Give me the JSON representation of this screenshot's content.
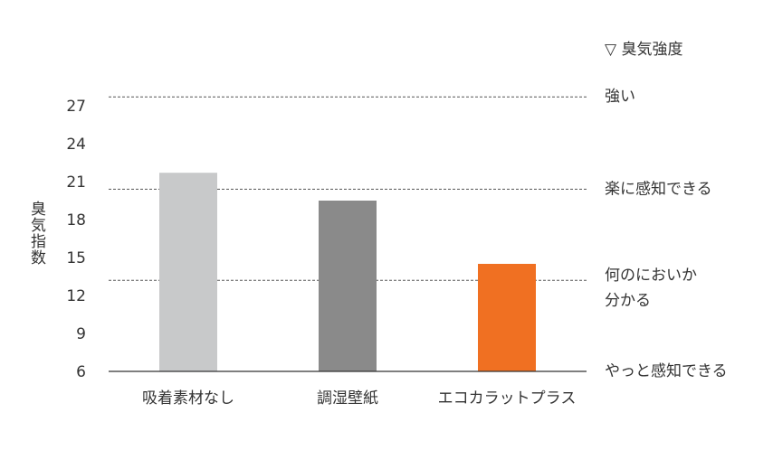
{
  "chart_data": {
    "type": "bar",
    "y_axis_label": "臭気指数",
    "right_axis_title": "▽ 臭気強度",
    "categories": [
      "吸着素材なし",
      "調湿壁紙",
      "エコカラットプラス"
    ],
    "values": [
      21.7,
      19.5,
      14.5
    ],
    "colors": [
      "#c8c9ca",
      "#8a8a8a",
      "#f07022"
    ],
    "ylim": [
      6,
      28
    ],
    "yticks": [
      6,
      9,
      12,
      15,
      18,
      21,
      24,
      27
    ],
    "reference_lines": [
      {
        "value": 27.7,
        "label": "強い"
      },
      {
        "value": 20.4,
        "label": "楽に感知できる"
      },
      {
        "value": 13.2,
        "label": [
          "何のにおいか",
          "分かる"
        ]
      },
      {
        "value": 6,
        "label": "やっと感知できる"
      }
    ]
  }
}
